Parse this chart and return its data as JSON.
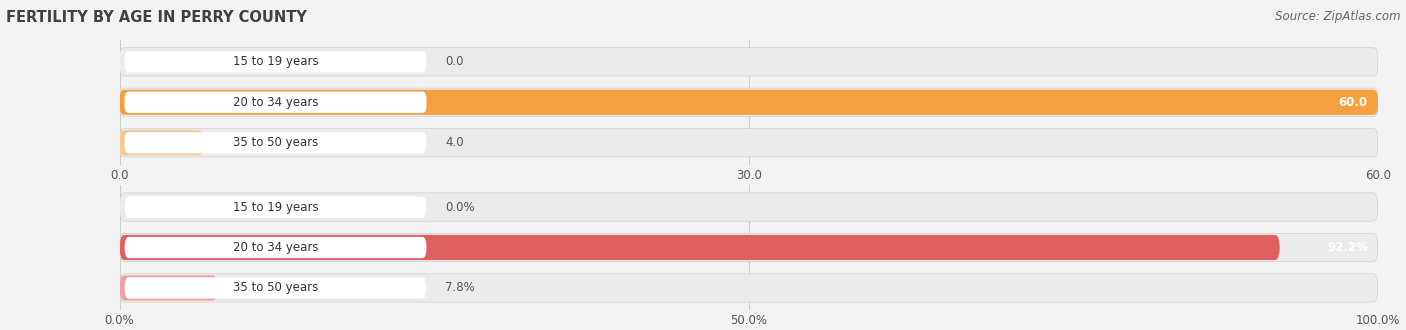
{
  "title": "FERTILITY BY AGE IN PERRY COUNTY",
  "source": "Source: ZipAtlas.com",
  "top_chart": {
    "categories": [
      "15 to 19 years",
      "20 to 34 years",
      "35 to 50 years"
    ],
    "values": [
      0.0,
      60.0,
      4.0
    ],
    "xlim": [
      0,
      60.0
    ],
    "xticks": [
      0.0,
      30.0,
      60.0
    ],
    "bar_color_full": "#F5A040",
    "bar_color_light": "#F5C890",
    "label_inside_color": "#ffffff",
    "label_outside_color": "#555555"
  },
  "bottom_chart": {
    "categories": [
      "15 to 19 years",
      "20 to 34 years",
      "35 to 50 years"
    ],
    "values": [
      0.0,
      92.2,
      7.8
    ],
    "xlim": [
      0,
      100.0
    ],
    "xticks": [
      0.0,
      50.0,
      100.0
    ],
    "xtick_labels": [
      "0.0%",
      "50.0%",
      "100.0%"
    ],
    "bar_color_full": "#E06060",
    "bar_color_light": "#EEA0A0",
    "label_inside_color": "#ffffff",
    "label_outside_color": "#555555"
  },
  "bg_color": "#f2f2f2",
  "row_bg_color": "#e8e8e8",
  "white_pill_color": "#ffffff",
  "title_fontsize": 10.5,
  "source_fontsize": 8.5,
  "label_fontsize": 8.5,
  "tick_fontsize": 8.5,
  "category_fontsize": 8.5,
  "bar_height": 0.62
}
